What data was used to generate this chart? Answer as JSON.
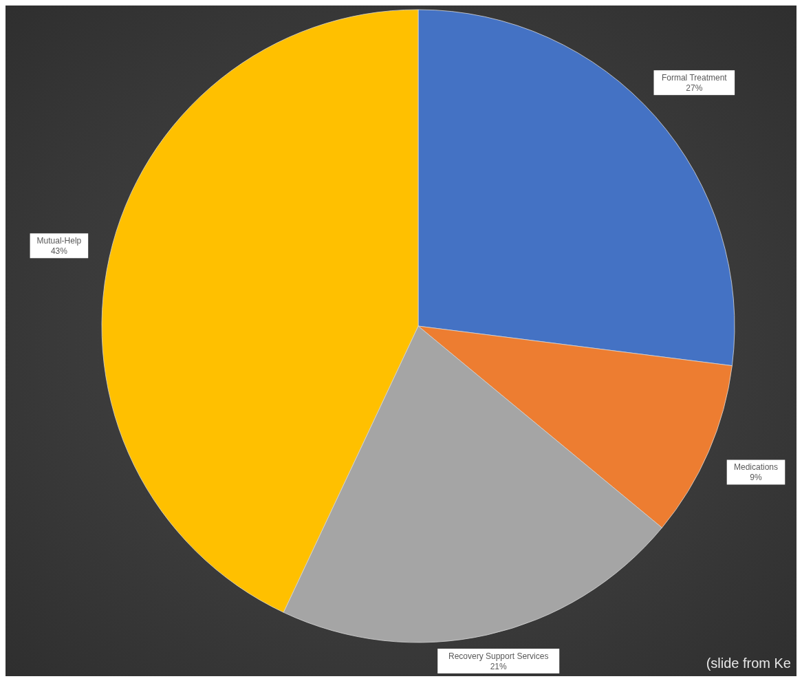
{
  "chart_data": {
    "type": "pie",
    "categories": [
      "Formal Treatment",
      "Medications",
      "Recovery Support Services",
      "Mutual-Help"
    ],
    "values": [
      27,
      9,
      21,
      43
    ],
    "colors": [
      "#4472c4",
      "#ed7d31",
      "#a5a5a5",
      "#ffc000"
    ],
    "value_labels": [
      "27%",
      "9%",
      "21%",
      "43%"
    ],
    "annotations": [
      "(slide from Ke"
    ]
  }
}
